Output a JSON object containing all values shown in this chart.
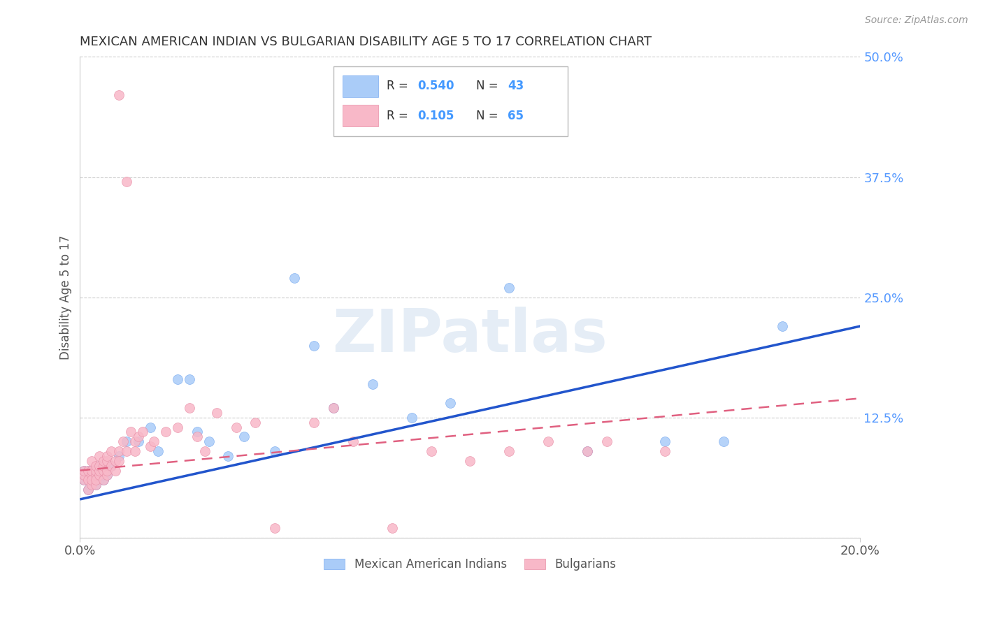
{
  "title": "MEXICAN AMERICAN INDIAN VS BULGARIAN DISABILITY AGE 5 TO 17 CORRELATION CHART",
  "source": "Source: ZipAtlas.com",
  "ylabel": "Disability Age 5 to 17",
  "xlim": [
    0.0,
    0.2
  ],
  "ylim": [
    0.0,
    0.5
  ],
  "xticks": [
    0.0,
    0.2
  ],
  "xticklabels": [
    "0.0%",
    "20.0%"
  ],
  "yticks_right": [
    0.0,
    0.125,
    0.25,
    0.375,
    0.5
  ],
  "yticklabels_right": [
    "",
    "12.5%",
    "25.0%",
    "37.5%",
    "50.0%"
  ],
  "grid_color": "#cccccc",
  "background_color": "#ffffff",
  "series1_name": "Mexican American Indians",
  "series1_color": "#aaccf8",
  "series1_edge_color": "#7aabf0",
  "series2_name": "Bulgarians",
  "series2_color": "#f8b8c8",
  "series2_edge_color": "#e890a8",
  "line1_color": "#2255cc",
  "line2_color": "#e06080",
  "watermark": "ZIPatlas",
  "series1_x": [
    0.001,
    0.001,
    0.002,
    0.002,
    0.002,
    0.003,
    0.003,
    0.003,
    0.004,
    0.004,
    0.004,
    0.005,
    0.005,
    0.005,
    0.006,
    0.006,
    0.006,
    0.007,
    0.007,
    0.008,
    0.01,
    0.012,
    0.015,
    0.018,
    0.02,
    0.025,
    0.028,
    0.03,
    0.033,
    0.038,
    0.042,
    0.05,
    0.055,
    0.06,
    0.065,
    0.075,
    0.085,
    0.095,
    0.11,
    0.13,
    0.15,
    0.165,
    0.18
  ],
  "series1_y": [
    0.06,
    0.07,
    0.05,
    0.065,
    0.07,
    0.06,
    0.055,
    0.07,
    0.065,
    0.055,
    0.07,
    0.06,
    0.065,
    0.075,
    0.06,
    0.07,
    0.065,
    0.07,
    0.065,
    0.075,
    0.085,
    0.1,
    0.1,
    0.115,
    0.09,
    0.165,
    0.165,
    0.11,
    0.1,
    0.085,
    0.105,
    0.09,
    0.27,
    0.2,
    0.135,
    0.16,
    0.125,
    0.14,
    0.26,
    0.09,
    0.1,
    0.1,
    0.22
  ],
  "series2_x": [
    0.001,
    0.001,
    0.001,
    0.002,
    0.002,
    0.002,
    0.003,
    0.003,
    0.003,
    0.003,
    0.003,
    0.004,
    0.004,
    0.004,
    0.004,
    0.004,
    0.005,
    0.005,
    0.005,
    0.005,
    0.006,
    0.006,
    0.006,
    0.006,
    0.007,
    0.007,
    0.007,
    0.007,
    0.008,
    0.008,
    0.009,
    0.009,
    0.01,
    0.01,
    0.01,
    0.011,
    0.012,
    0.012,
    0.013,
    0.014,
    0.014,
    0.015,
    0.016,
    0.018,
    0.019,
    0.022,
    0.025,
    0.028,
    0.03,
    0.032,
    0.035,
    0.04,
    0.045,
    0.05,
    0.06,
    0.065,
    0.07,
    0.08,
    0.09,
    0.1,
    0.11,
    0.12,
    0.13,
    0.135,
    0.15
  ],
  "series2_y": [
    0.06,
    0.065,
    0.07,
    0.05,
    0.06,
    0.07,
    0.055,
    0.065,
    0.07,
    0.06,
    0.08,
    0.055,
    0.065,
    0.07,
    0.075,
    0.06,
    0.065,
    0.07,
    0.075,
    0.085,
    0.06,
    0.07,
    0.075,
    0.08,
    0.065,
    0.07,
    0.08,
    0.085,
    0.075,
    0.09,
    0.07,
    0.08,
    0.46,
    0.09,
    0.08,
    0.1,
    0.37,
    0.09,
    0.11,
    0.1,
    0.09,
    0.105,
    0.11,
    0.095,
    0.1,
    0.11,
    0.115,
    0.135,
    0.105,
    0.09,
    0.13,
    0.115,
    0.12,
    0.01,
    0.12,
    0.135,
    0.1,
    0.01,
    0.09,
    0.08,
    0.09,
    0.1,
    0.09,
    0.1,
    0.09
  ]
}
